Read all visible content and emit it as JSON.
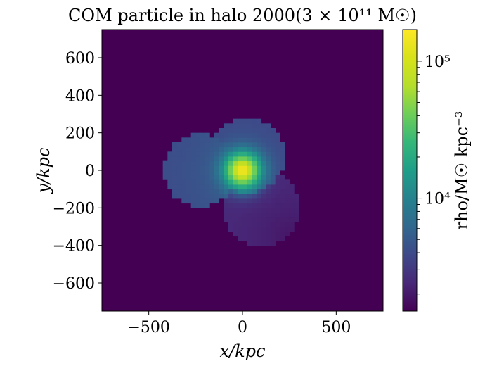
{
  "chart_data": {
    "type": "heatmap",
    "title": "COM particle in halo 2000(3 × 10¹¹ M☉)",
    "xlabel": "x/kpc",
    "ylabel": "y/kpc",
    "xlim": [
      -750,
      750
    ],
    "ylim": [
      -750,
      750
    ],
    "x_ticks": [
      -500,
      0,
      500
    ],
    "y_ticks": [
      -600,
      -400,
      -200,
      0,
      200,
      400,
      600
    ],
    "x_tick_labels": [
      "−500",
      "0",
      "500"
    ],
    "y_tick_labels": [
      "−600",
      "−400",
      "−200",
      "0",
      "200",
      "400",
      "600"
    ],
    "grid": false,
    "cell_size_kpc": 25,
    "background_value": 1500,
    "colorbar": {
      "label": "rho/M☉ kpc⁻³",
      "scale": "log",
      "range": [
        1500,
        170000
      ],
      "major_ticks": [
        10000,
        100000
      ],
      "major_tick_labels": [
        "10⁴",
        "10⁵"
      ],
      "minor_ticks": [
        2000,
        3000,
        4000,
        5000,
        6000,
        7000,
        8000,
        9000,
        20000,
        30000,
        40000,
        50000,
        60000,
        70000,
        80000,
        90000
      ]
    },
    "colormap": "viridis",
    "regions": [
      {
        "name": "western-lobe",
        "center": [
          -225,
          0
        ],
        "radius": 195,
        "base_value": 3900,
        "gradient": {
          "toward": [
            0,
            0
          ],
          "scale": 180,
          "amplitude": 2500
        }
      },
      {
        "name": "northern-lobe",
        "center": [
          25,
          80
        ],
        "radius": 200,
        "base_value": 3500,
        "gradient": {
          "toward": [
            0,
            0
          ],
          "scale": 140,
          "amplitude": 3000
        }
      },
      {
        "name": "southeastern-lobe",
        "center": [
          100,
          -200
        ],
        "radius": 200,
        "base_value": 2600,
        "gradient": {
          "toward": [
            250,
            -350
          ],
          "scale": 250,
          "amplitude": -700
        }
      }
    ],
    "core": {
      "center": [
        0,
        0
      ],
      "peak_value": 170000,
      "scale_kpc": 45
    }
  }
}
